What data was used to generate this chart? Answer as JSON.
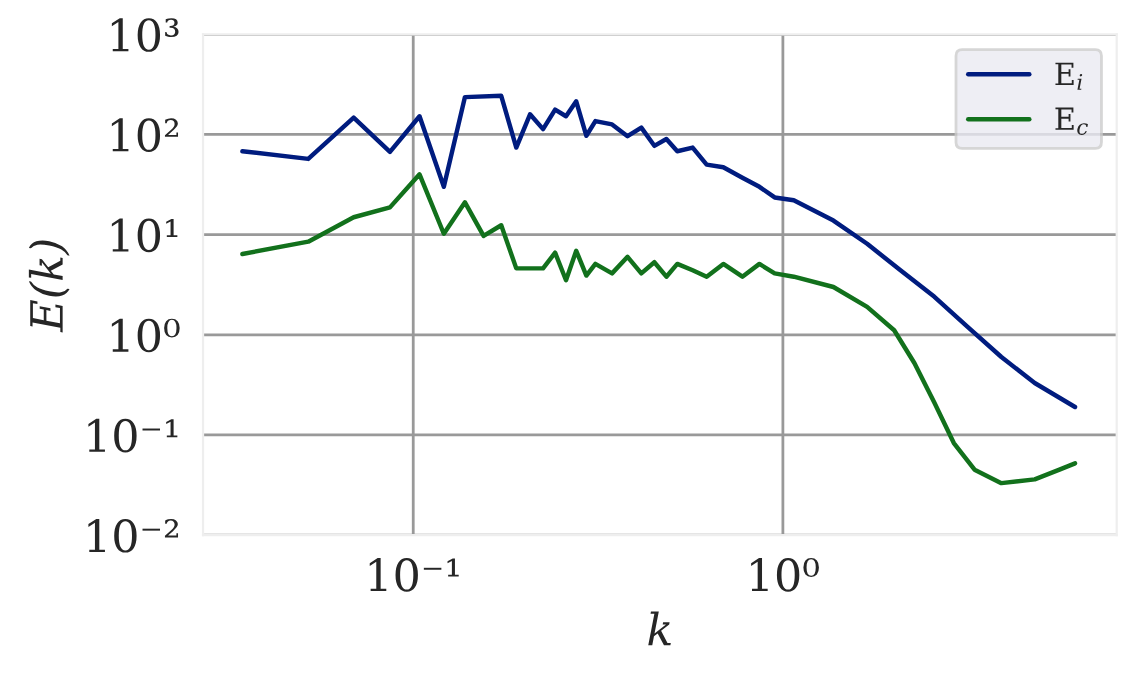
{
  "chart_data": {
    "type": "line",
    "xlabel": "k",
    "ylabel": "E(k)",
    "log": "xy",
    "grid": true,
    "legend": "top right",
    "xlim": [
      0.027,
      8
    ],
    "ylim": [
      0.01,
      1000
    ],
    "xticks": [
      {
        "value": 0.1,
        "label": "10⁻¹"
      },
      {
        "value": 1,
        "label": "10⁰"
      }
    ],
    "yticks": [
      {
        "value": 0.01,
        "label": "10⁻²"
      },
      {
        "value": 0.1,
        "label": "10⁻¹"
      },
      {
        "value": 1,
        "label": "10⁰"
      },
      {
        "value": 10,
        "label": "10¹"
      },
      {
        "value": 100,
        "label": "10²"
      },
      {
        "value": 1000,
        "label": "10³"
      }
    ],
    "series": [
      {
        "name": "E$_{i}$",
        "color": "#001c7f",
        "x": [
          0.0345,
          0.052,
          0.069,
          0.0865,
          0.104,
          0.121,
          0.138,
          0.173,
          0.19,
          0.207,
          0.2245,
          0.242,
          0.259,
          0.276,
          0.294,
          0.311,
          0.345,
          0.38,
          0.414,
          0.449,
          0.484,
          0.518,
          0.57,
          0.622,
          0.69,
          0.777,
          0.864,
          0.95,
          1.07,
          1.37,
          1.69,
          2.08,
          2.57,
          3.16,
          3.9,
          4.8,
          6.17
        ],
        "values": [
          68,
          57,
          147,
          67,
          152,
          30,
          236,
          243,
          74,
          159,
          113,
          177,
          152,
          214,
          97,
          136,
          126,
          96,
          117,
          77,
          90,
          68,
          74,
          50,
          47,
          37,
          30,
          23.5,
          22,
          13.8,
          8.1,
          4.4,
          2.39,
          1.2,
          0.6,
          0.33,
          0.19
        ]
      },
      {
        "name": "E$_{c}$",
        "color": "#12711c",
        "x": [
          0.0345,
          0.052,
          0.069,
          0.0865,
          0.104,
          0.121,
          0.138,
          0.155,
          0.173,
          0.19,
          0.2245,
          0.242,
          0.259,
          0.276,
          0.294,
          0.311,
          0.345,
          0.38,
          0.414,
          0.449,
          0.484,
          0.518,
          0.57,
          0.622,
          0.69,
          0.777,
          0.864,
          0.95,
          1.07,
          1.37,
          1.69,
          2.0,
          2.27,
          2.57,
          2.9,
          3.3,
          3.9,
          4.8,
          5.6,
          6.17
        ],
        "values": [
          6.4,
          8.5,
          14.9,
          18.7,
          40,
          10.2,
          21,
          9.7,
          12.4,
          4.6,
          4.6,
          6.6,
          3.5,
          6.9,
          3.9,
          5.1,
          4.1,
          6.0,
          4.1,
          5.3,
          3.8,
          5.1,
          4.4,
          3.8,
          5.1,
          3.8,
          5.1,
          4.1,
          3.8,
          3.0,
          1.9,
          1.11,
          0.52,
          0.209,
          0.083,
          0.045,
          0.033,
          0.036,
          0.045,
          0.052
        ]
      }
    ]
  }
}
